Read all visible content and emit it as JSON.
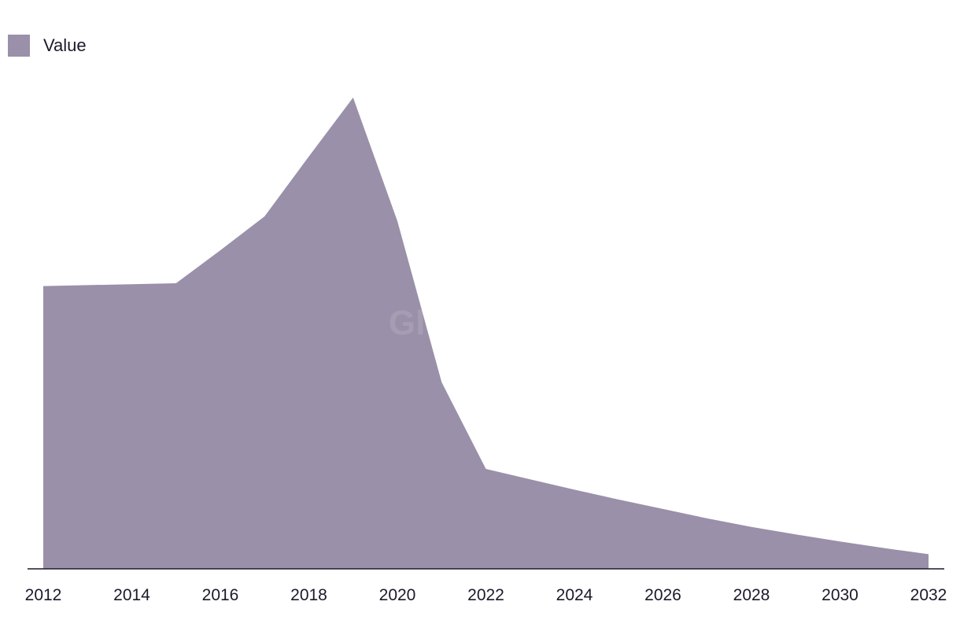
{
  "chart_data": {
    "type": "area",
    "x": [
      2012,
      2013,
      2014,
      2015,
      2016,
      2017,
      2018,
      2019,
      2020,
      2021,
      2022,
      2023,
      2024,
      2025,
      2026,
      2027,
      2028,
      2029,
      2030,
      2031,
      2032
    ],
    "series": [
      {
        "name": "Value",
        "color": "#9a90a9",
        "values": [
          60.0,
          60.2,
          60.4,
          60.6,
          67.6,
          74.8,
          87.5,
          100.0,
          73.8,
          39.6,
          21.2,
          19.0,
          16.8,
          14.7,
          12.7,
          10.7,
          8.9,
          7.3,
          5.8,
          4.4,
          3.1
        ]
      }
    ],
    "xticks": [
      "2012",
      "2014",
      "2016",
      "2018",
      "2020",
      "2022",
      "2024",
      "2026",
      "2028",
      "2030",
      "2032"
    ],
    "xlim": [
      2012,
      2032
    ],
    "ylim": [
      0,
      115
    ],
    "grid": false,
    "legend": "top-left",
    "watermark": "GlobalData"
  }
}
